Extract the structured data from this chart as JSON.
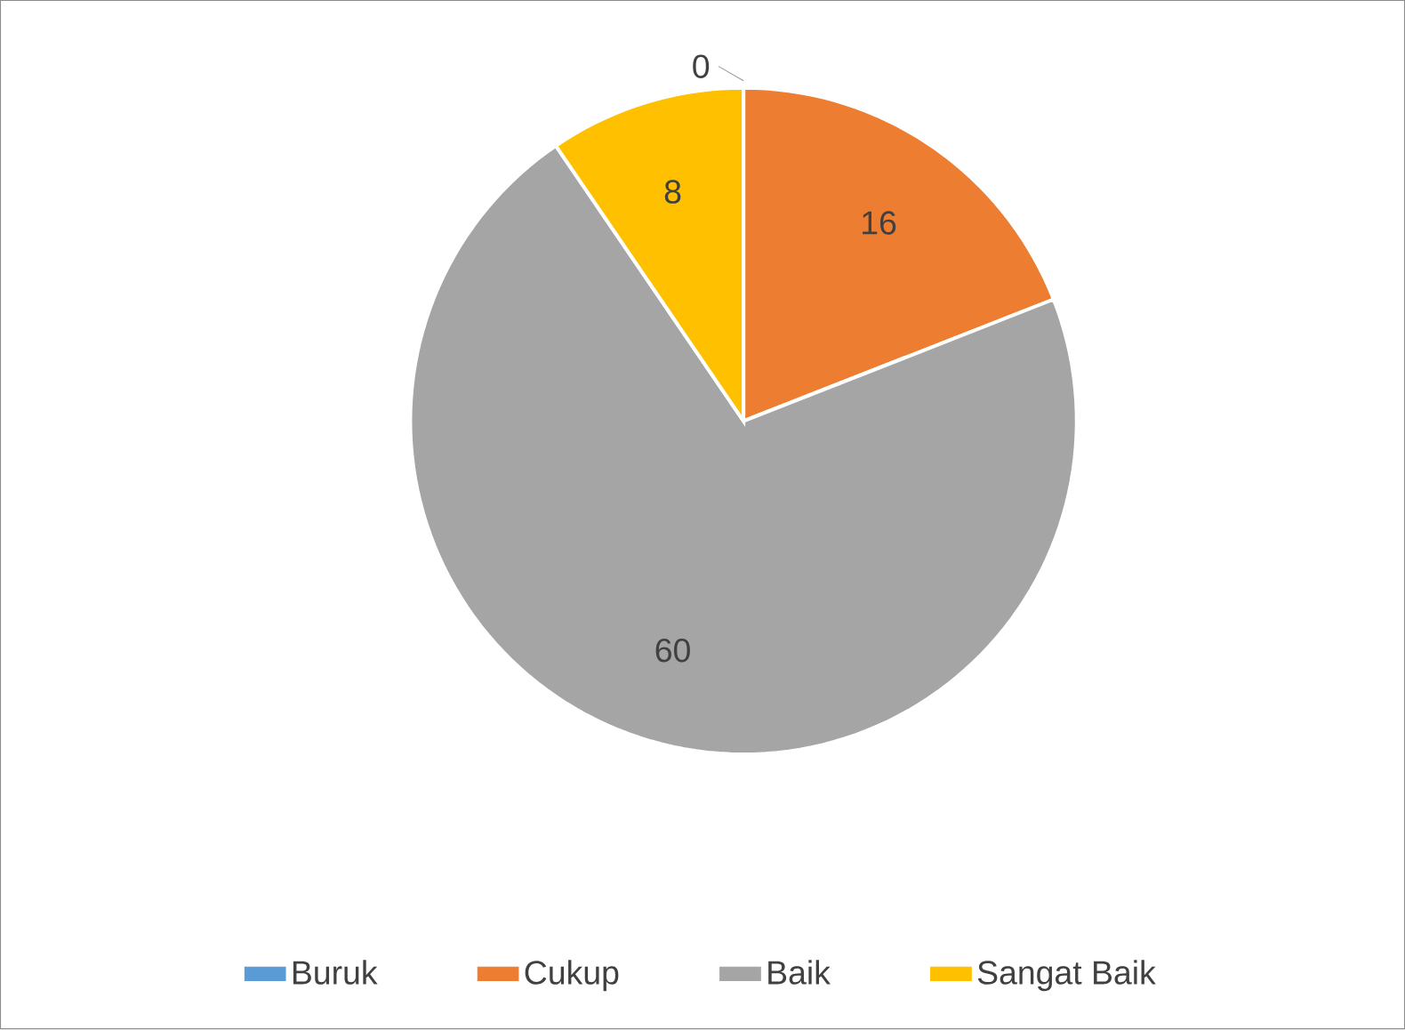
{
  "chart_data": {
    "type": "pie",
    "categories": [
      "Buruk",
      "Cukup",
      "Baik",
      "Sangat Baik"
    ],
    "values": [
      0,
      16,
      60,
      8
    ],
    "colors": [
      "#5b9bd5",
      "#ed7d31",
      "#a5a5a5",
      "#ffc000"
    ],
    "value_labels": [
      "0",
      "16",
      "60",
      "8"
    ],
    "legend": "bottom"
  }
}
